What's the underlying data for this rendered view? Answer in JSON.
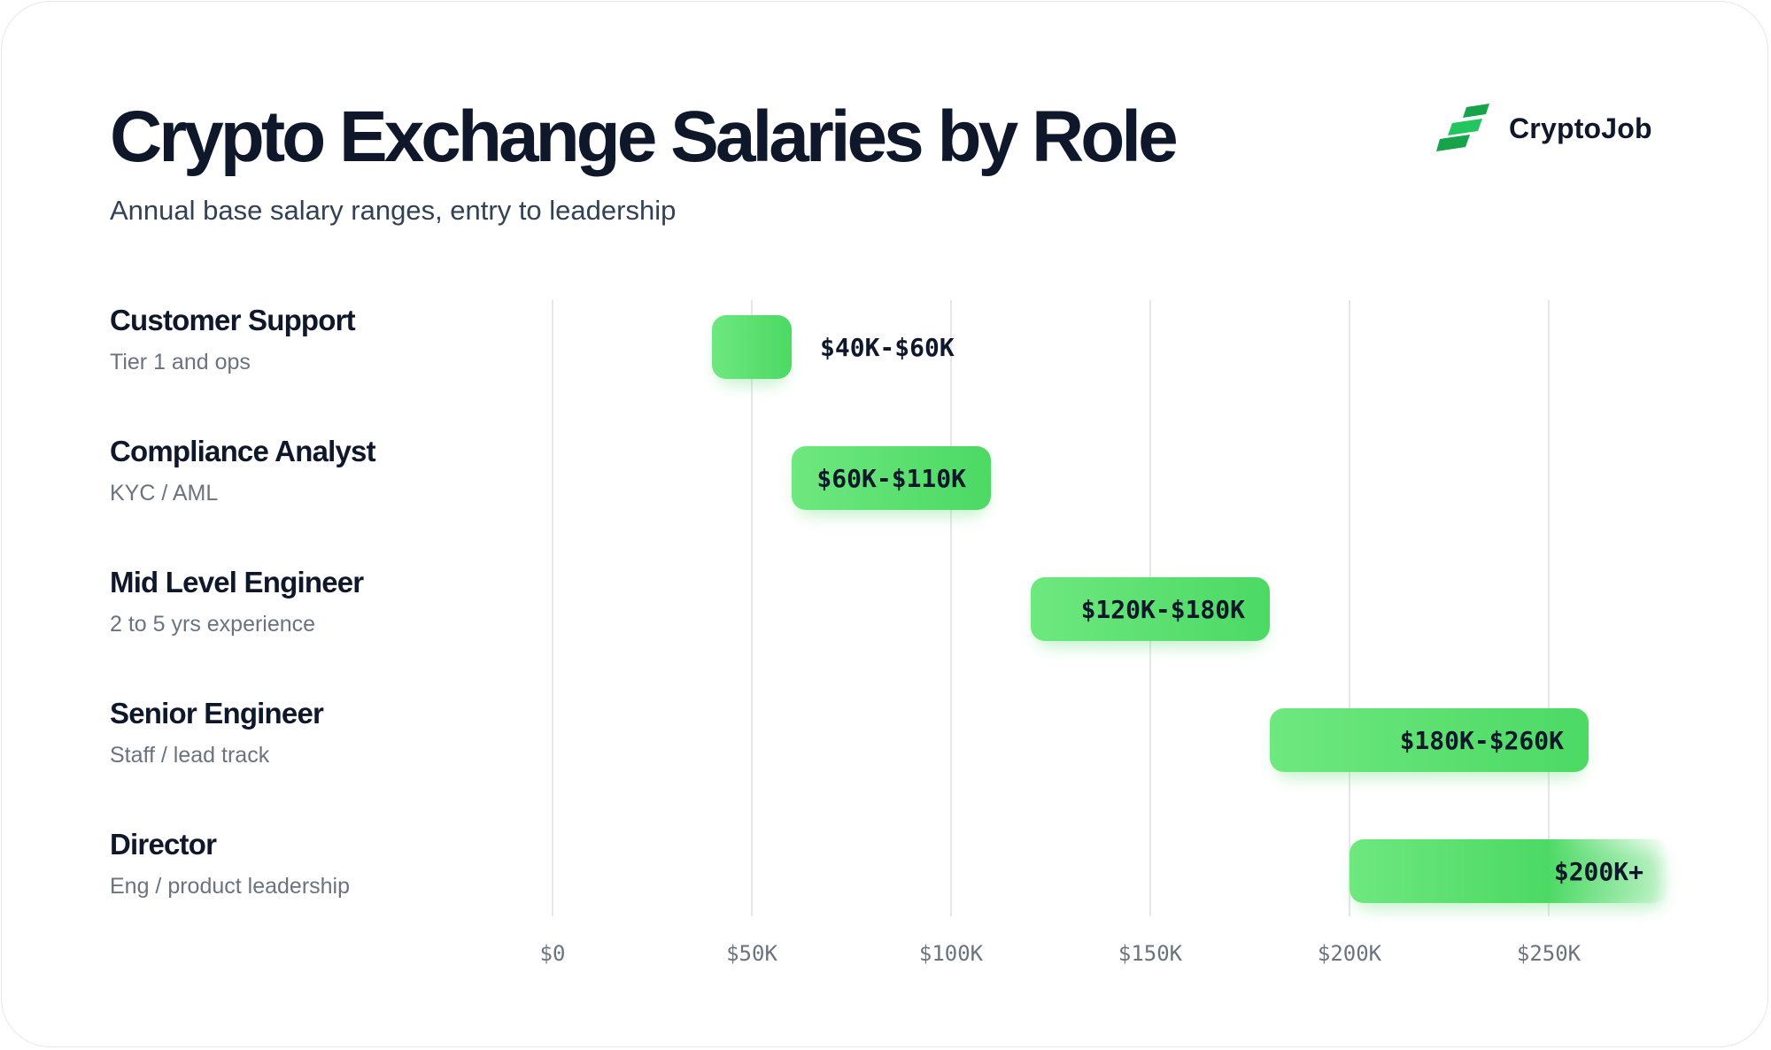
{
  "title": "Crypto Exchange Salaries by Role",
  "subtitle": "Annual base salary ranges, entry to leadership",
  "brand": {
    "name": "CryptoJob",
    "icon": "cryptojob-logo-icon",
    "colors": [
      "#16a34a",
      "#22c55e"
    ]
  },
  "colors": {
    "bar_start": "#6ee87f",
    "bar_end": "#4cd964",
    "gridline": "#e5e7eb",
    "tick_text": "#6b7280",
    "title": "#0f172a"
  },
  "roles": [
    {
      "name": "Customer Support",
      "desc": "Tier 1 and ops"
    },
    {
      "name": "Compliance Analyst",
      "desc": "KYC / AML"
    },
    {
      "name": "Mid Level Engineer",
      "desc": "2 to 5 yrs experience"
    },
    {
      "name": "Senior Engineer",
      "desc": "Staff / lead track"
    },
    {
      "name": "Director",
      "desc": "Eng / product leadership"
    }
  ],
  "chart_data": {
    "type": "bar",
    "orientation": "horizontal-range",
    "title": "Crypto Exchange Salaries by Role",
    "subtitle": "Annual base salary ranges, entry to leadership",
    "categories": [
      "Customer Support",
      "Compliance Analyst",
      "Mid Level Engineer",
      "Senior Engineer",
      "Director"
    ],
    "ranges": [
      {
        "role": "Customer Support",
        "min": 40000,
        "max": 60000,
        "label": "$40K-$60K",
        "label_position": "outside"
      },
      {
        "role": "Compliance Analyst",
        "min": 60000,
        "max": 110000,
        "label": "$60K-$110K",
        "label_position": "inside"
      },
      {
        "role": "Mid Level Engineer",
        "min": 120000,
        "max": 180000,
        "label": "$120K-$180K",
        "label_position": "inside"
      },
      {
        "role": "Senior Engineer",
        "min": 180000,
        "max": 260000,
        "label": "$180K-$260K",
        "label_position": "inside"
      },
      {
        "role": "Director",
        "min": 200000,
        "max": 280000,
        "label": "$200K+",
        "label_position": "inside",
        "open_ended": true
      }
    ],
    "xlim": [
      0,
      280000
    ],
    "xticks": [
      0,
      50000,
      100000,
      150000,
      200000,
      250000
    ],
    "xtick_labels": [
      "$0",
      "$50K",
      "$100K",
      "$150K",
      "$200K",
      "$250K"
    ],
    "grid": "vertical",
    "legend": "none"
  }
}
